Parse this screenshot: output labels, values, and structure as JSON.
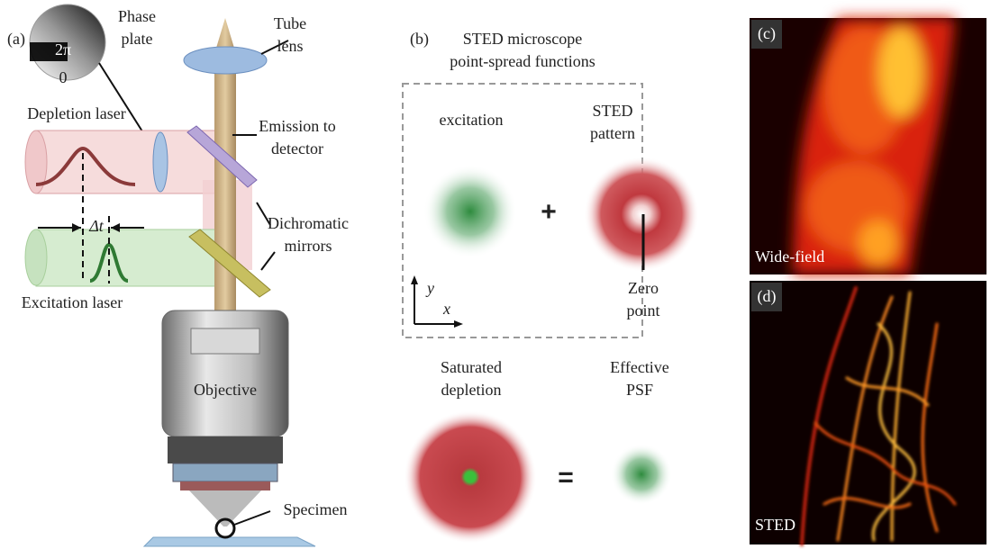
{
  "panel_a": {
    "label": "(a)",
    "phase_plate": [
      "Phase",
      "plate"
    ],
    "phase_values": [
      "2π",
      "0"
    ],
    "tube_lens": [
      "Tube",
      "lens"
    ],
    "emission": [
      "Emission to",
      "detector"
    ],
    "depletion_laser": "Depletion laser",
    "delay": "Δt",
    "mirrors": [
      "Dichromatic",
      "mirrors"
    ],
    "excitation_laser": "Excitation laser",
    "objective": "Objective",
    "specimen": "Specimen"
  },
  "panel_b": {
    "label": "(b)",
    "title": [
      "STED microscope",
      "point-spread functions"
    ],
    "excitation": "excitation",
    "sted_pattern": [
      "STED",
      "pattern"
    ],
    "plus": "+",
    "zero_point": [
      "Zero",
      "point"
    ],
    "axis_y": "y",
    "axis_x": "x",
    "saturated": [
      "Saturated",
      "depletion"
    ],
    "effective": [
      "Effective",
      "PSF"
    ],
    "equals": "="
  },
  "panel_c": {
    "label": "(c)",
    "caption": "Wide-field"
  },
  "panel_d": {
    "label": "(d)",
    "caption": "STED"
  }
}
